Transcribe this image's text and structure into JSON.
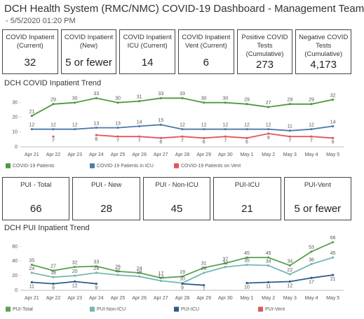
{
  "header": {
    "title": "DCH Health System (RMC/NMC) COVID-19 Dashboard - Management Team",
    "subtitle": "- 5/5/2020 01:20 PM"
  },
  "cards": [
    {
      "label": "COVID Inpatient (Current)",
      "value": "32"
    },
    {
      "label": "COVID Inpatient (New)",
      "value": "5 or fewer"
    },
    {
      "label": "COVID Inpatient ICU (Current)",
      "value": "14"
    },
    {
      "label": "COVID Inpatient Vent (Current)",
      "value": "6"
    },
    {
      "label": "Positive COVID Tests (Cumulative)",
      "value": "273"
    },
    {
      "label": "Negative COVID Tests (Cumulative)",
      "value": "4,173"
    }
  ],
  "chart_data": [
    {
      "type": "line",
      "title": "DCH COVID Inpatient Trend",
      "categories": [
        "Apr 21",
        "Apr 22",
        "Apr 23",
        "Apr 24",
        "Apr 25",
        "Apr 26",
        "Apr 27",
        "Apr 28",
        "Apr 29",
        "Apr 30",
        "May 1",
        "May 2",
        "May 3",
        "May 4",
        "May 5"
      ],
      "series": [
        {
          "name": "COVID-19 Patients",
          "color": "#4e9a3c",
          "values": [
            21,
            29,
            30,
            33,
            30,
            31,
            33,
            33,
            30,
            30,
            29,
            27,
            29,
            29,
            32
          ]
        },
        {
          "name": "COVID-19 Patients in ICU",
          "color": "#4e79a7",
          "values": [
            12,
            12,
            12,
            13,
            13,
            14,
            15,
            12,
            12,
            12,
            12,
            12,
            11,
            12,
            14
          ]
        },
        {
          "name": "COVID-19 Patients on Vent",
          "color": "#e15759",
          "values": [
            null,
            7,
            null,
            8,
            7,
            7,
            6,
            7,
            6,
            7,
            6,
            9,
            7,
            7,
            6
          ]
        }
      ],
      "ylim": [
        0,
        36
      ],
      "yticks": [
        0,
        10,
        20,
        30
      ],
      "grid": false,
      "legend": "bottom"
    },
    {
      "type": "line",
      "title": "DCH PUI Inpatient Trend",
      "categories": [
        "Apr 21",
        "Apr 22",
        "Apr 23",
        "Apr 24",
        "Apr 25",
        "Apr 26",
        "Apr 27",
        "Apr 28",
        "Apr 29",
        "Apr 30",
        "May 1",
        "May 2",
        "May 3",
        "May 4",
        "May 5"
      ],
      "series": [
        {
          "name": "PUI-Total",
          "color": "#59a14f",
          "values": [
            35,
            27,
            32,
            33,
            26,
            24,
            17,
            19,
            31,
            37,
            45,
            45,
            34,
            53,
            66
          ]
        },
        {
          "name": "PUI-Non-ICU",
          "color": "#76b7b2",
          "values": [
            24,
            18,
            20,
            24,
            21,
            19,
            13,
            10,
            24,
            32,
            35,
            34,
            22,
            36,
            45
          ]
        },
        {
          "name": "PUI-ICU",
          "color": "#2f5a8a",
          "values": [
            11,
            9,
            12,
            9,
            null,
            null,
            null,
            9,
            7,
            null,
            10,
            11,
            12,
            17,
            21
          ]
        },
        {
          "name": "PUI-Vent",
          "color": "#e15759",
          "values": [
            null,
            null,
            null,
            null,
            null,
            null,
            null,
            null,
            null,
            null,
            null,
            null,
            null,
            null,
            null
          ]
        }
      ],
      "ylim": [
        0,
        70
      ],
      "yticks": [
        0,
        20,
        40,
        60
      ],
      "grid": false,
      "legend": "bottom"
    }
  ],
  "pui_cards": [
    {
      "label": "PUI - Total",
      "value": "66"
    },
    {
      "label": "PUI - New",
      "value": "28"
    },
    {
      "label": "PUI - Non-ICU",
      "value": "45"
    },
    {
      "label": "PUI-ICU",
      "value": "21"
    },
    {
      "label": "PUI-Vent",
      "value": "5 or fewer"
    }
  ]
}
